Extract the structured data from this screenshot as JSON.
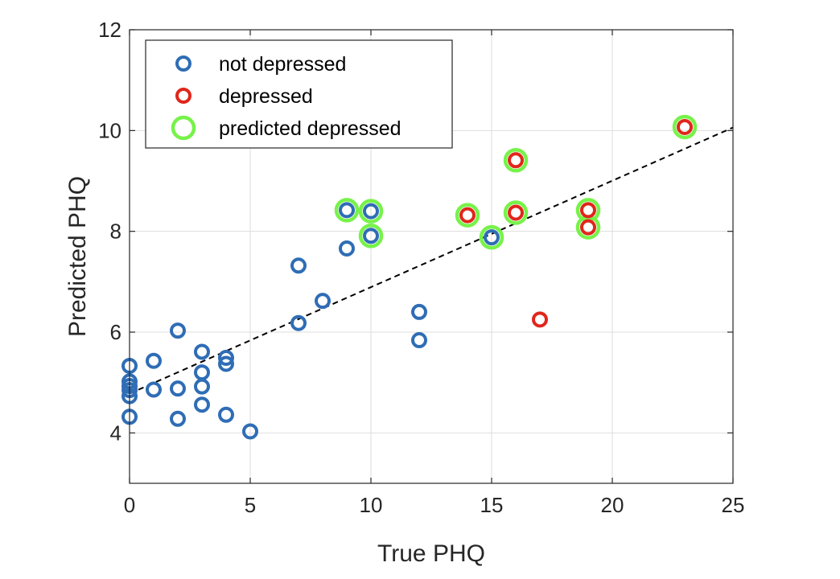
{
  "chart_data": {
    "type": "scatter",
    "xlabel": "True PHQ",
    "ylabel": "Predicted PHQ",
    "xlim": [
      0,
      25
    ],
    "ylim": [
      3,
      12
    ],
    "xticks": [
      0,
      5,
      10,
      15,
      20,
      25
    ],
    "yticks": [
      4,
      6,
      8,
      10,
      12
    ],
    "grid": true,
    "legend_position": "top-left",
    "colors": {
      "not_depressed": "#2f6db5",
      "depressed": "#e0261b",
      "predicted_depressed": "#77f24a",
      "trend": "#000000"
    },
    "legend": [
      "not depressed",
      "depressed",
      "predicted depressed"
    ],
    "series": [
      {
        "name": "not depressed",
        "x": [
          0,
          0,
          0,
          0,
          0,
          0,
          1,
          1,
          2,
          2,
          2,
          3,
          3,
          3,
          3,
          4,
          4,
          4,
          5,
          7,
          7,
          8,
          9,
          9,
          10,
          10,
          12,
          12,
          15
        ],
        "y": [
          5.33,
          5.02,
          4.93,
          4.85,
          4.73,
          4.32,
          5.43,
          4.86,
          6.03,
          4.88,
          4.28,
          5.61,
          5.2,
          4.92,
          4.56,
          5.49,
          5.37,
          4.36,
          4.03,
          7.32,
          6.18,
          6.62,
          8.42,
          7.66,
          8.4,
          7.91,
          6.4,
          5.84,
          7.88
        ]
      },
      {
        "name": "depressed",
        "x": [
          14,
          16,
          16,
          17,
          19,
          19,
          23
        ],
        "y": [
          8.32,
          9.41,
          8.37,
          6.25,
          8.42,
          8.08,
          10.07
        ]
      },
      {
        "name": "predicted depressed",
        "x": [
          9,
          10,
          10,
          14,
          15,
          16,
          16,
          19,
          19,
          23
        ],
        "y": [
          8.42,
          8.4,
          7.91,
          8.32,
          7.88,
          9.41,
          8.37,
          8.42,
          8.08,
          10.07
        ]
      }
    ],
    "trend_line": {
      "style": "dashed",
      "x": [
        0,
        25
      ],
      "y": [
        4.78,
        10.06
      ]
    }
  }
}
